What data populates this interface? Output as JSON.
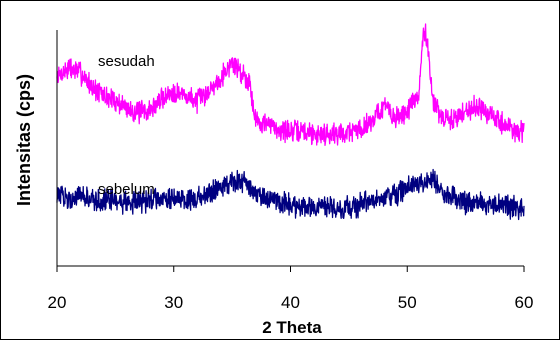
{
  "chart_data": {
    "type": "line",
    "title": "",
    "xlabel": "2 Theta",
    "ylabel": "Intensitas (cps)",
    "xlim": [
      20,
      60
    ],
    "x_ticks": [
      "20",
      "30",
      "40",
      "50",
      "60"
    ],
    "y_ticks_visible": false,
    "grid": false,
    "legend": "none (series labelled directly on plot)",
    "series": [
      {
        "name": "sesudah",
        "color": "#ff00ff",
        "points": [
          [
            20,
            0.8
          ],
          [
            21,
            0.84
          ],
          [
            22,
            0.82
          ],
          [
            23,
            0.76
          ],
          [
            24,
            0.72
          ],
          [
            25,
            0.7
          ],
          [
            26,
            0.67
          ],
          [
            27,
            0.65
          ],
          [
            28,
            0.66
          ],
          [
            29,
            0.71
          ],
          [
            30,
            0.74
          ],
          [
            31,
            0.72
          ],
          [
            32,
            0.7
          ],
          [
            33,
            0.74
          ],
          [
            34,
            0.8
          ],
          [
            35,
            0.86
          ],
          [
            35.8,
            0.82
          ],
          [
            36.5,
            0.78
          ],
          [
            37,
            0.62
          ],
          [
            38,
            0.6
          ],
          [
            39,
            0.58
          ],
          [
            40,
            0.57
          ],
          [
            41,
            0.57
          ],
          [
            42,
            0.56
          ],
          [
            43,
            0.56
          ],
          [
            44,
            0.56
          ],
          [
            45,
            0.57
          ],
          [
            46,
            0.58
          ],
          [
            47,
            0.62
          ],
          [
            48,
            0.68
          ],
          [
            49,
            0.62
          ],
          [
            50,
            0.66
          ],
          [
            51,
            0.72
          ],
          [
            51.3,
            0.95
          ],
          [
            51.6,
            1.0
          ],
          [
            51.9,
            0.86
          ],
          [
            52.2,
            0.7
          ],
          [
            53,
            0.62
          ],
          [
            54,
            0.62
          ],
          [
            55,
            0.66
          ],
          [
            56,
            0.68
          ],
          [
            57,
            0.64
          ],
          [
            58,
            0.61
          ],
          [
            59,
            0.58
          ],
          [
            60,
            0.56
          ]
        ]
      },
      {
        "name": "sebelum",
        "color": "#000080",
        "points": [
          [
            20,
            0.3
          ],
          [
            21,
            0.29
          ],
          [
            22,
            0.29
          ],
          [
            23,
            0.28
          ],
          [
            24,
            0.28
          ],
          [
            25,
            0.27
          ],
          [
            26,
            0.27
          ],
          [
            27,
            0.27
          ],
          [
            28,
            0.28
          ],
          [
            29,
            0.29
          ],
          [
            30,
            0.29
          ],
          [
            31,
            0.28
          ],
          [
            32,
            0.29
          ],
          [
            33,
            0.31
          ],
          [
            34,
            0.34
          ],
          [
            35,
            0.36
          ],
          [
            36,
            0.35
          ],
          [
            37,
            0.31
          ],
          [
            38,
            0.28
          ],
          [
            39,
            0.27
          ],
          [
            40,
            0.26
          ],
          [
            41,
            0.25
          ],
          [
            42,
            0.25
          ],
          [
            43,
            0.25
          ],
          [
            44,
            0.24
          ],
          [
            45,
            0.25
          ],
          [
            46,
            0.26
          ],
          [
            47,
            0.27
          ],
          [
            48,
            0.29
          ],
          [
            49,
            0.3
          ],
          [
            50,
            0.33
          ],
          [
            51,
            0.35
          ],
          [
            52,
            0.37
          ],
          [
            53,
            0.32
          ],
          [
            54,
            0.29
          ],
          [
            55,
            0.27
          ],
          [
            56,
            0.27
          ],
          [
            57,
            0.26
          ],
          [
            58,
            0.26
          ],
          [
            59,
            0.25
          ],
          [
            60,
            0.24
          ]
        ]
      }
    ]
  }
}
